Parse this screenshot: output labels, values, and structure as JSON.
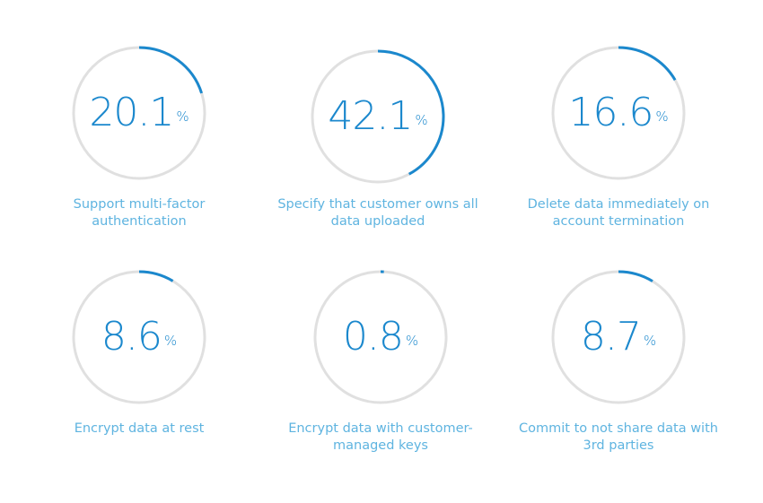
{
  "colors": {
    "accent": "#1b88cd",
    "track": "#e0e0e0",
    "label": "#5fb4e0"
  },
  "unit": "%",
  "chart_data": {
    "type": "radial-progress",
    "items": [
      {
        "value": 20.1,
        "display": "20.1",
        "label": "Support multi-factor authentication"
      },
      {
        "value": 42.1,
        "display": "42.1",
        "label": "Specify that customer owns all data uploaded"
      },
      {
        "value": 16.6,
        "display": "16.6",
        "label": "Delete data immediately on account termination"
      },
      {
        "value": 8.6,
        "display": "8.6",
        "label": "Encrypt data at rest"
      },
      {
        "value": 0.8,
        "display": "0.8",
        "label": "Encrypt data with customer-managed keys"
      },
      {
        "value": 8.7,
        "display": "8.7",
        "label": "Commit to not share data with 3rd parties"
      }
    ]
  }
}
